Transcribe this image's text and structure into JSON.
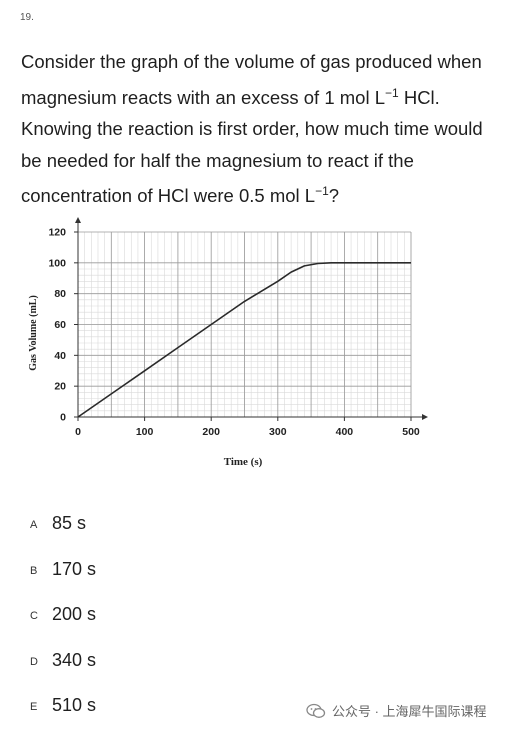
{
  "question": {
    "number": "19.",
    "line1": "Consider the graph of the volume of gas produced when",
    "line2_pre": "magnesium reacts with an excess of 1 mol L",
    "line2_sup": "−1",
    "line2_post": " HCl.",
    "line3": "Knowing the reaction is first order, how much time would",
    "line4": "be needed for half the magnesium to react if the",
    "line5_pre": "concentration of HCl were 0.5 mol L",
    "line5_sup": "−1",
    "line5_post": "?"
  },
  "chart_data": {
    "type": "line",
    "xlabel": "Time (s)",
    "ylabel": "Gas Volume (mL)",
    "xlim": [
      0,
      500
    ],
    "ylim": [
      0,
      120
    ],
    "x_ticks": [
      0,
      100,
      200,
      300,
      400,
      500
    ],
    "y_ticks": [
      0,
      20,
      40,
      60,
      80,
      100,
      120
    ],
    "grid": true,
    "series": [
      {
        "x": [
          0,
          50,
          100,
          150,
          200,
          250,
          300,
          320,
          340,
          360,
          380,
          400,
          450,
          500
        ],
        "y": [
          0,
          15,
          30,
          45,
          60,
          75,
          88,
          94,
          98,
          99.6,
          100,
          100,
          100,
          100
        ]
      }
    ]
  },
  "choices": [
    {
      "letter": "A",
      "text": "85 s"
    },
    {
      "letter": "B",
      "text": "170 s"
    },
    {
      "letter": "C",
      "text": "200 s"
    },
    {
      "letter": "D",
      "text": "340 s"
    },
    {
      "letter": "E",
      "text": "510 s"
    }
  ],
  "watermark": {
    "text": "公众号 · 上海犀牛国际课程",
    "icon": "wechat-icon"
  }
}
